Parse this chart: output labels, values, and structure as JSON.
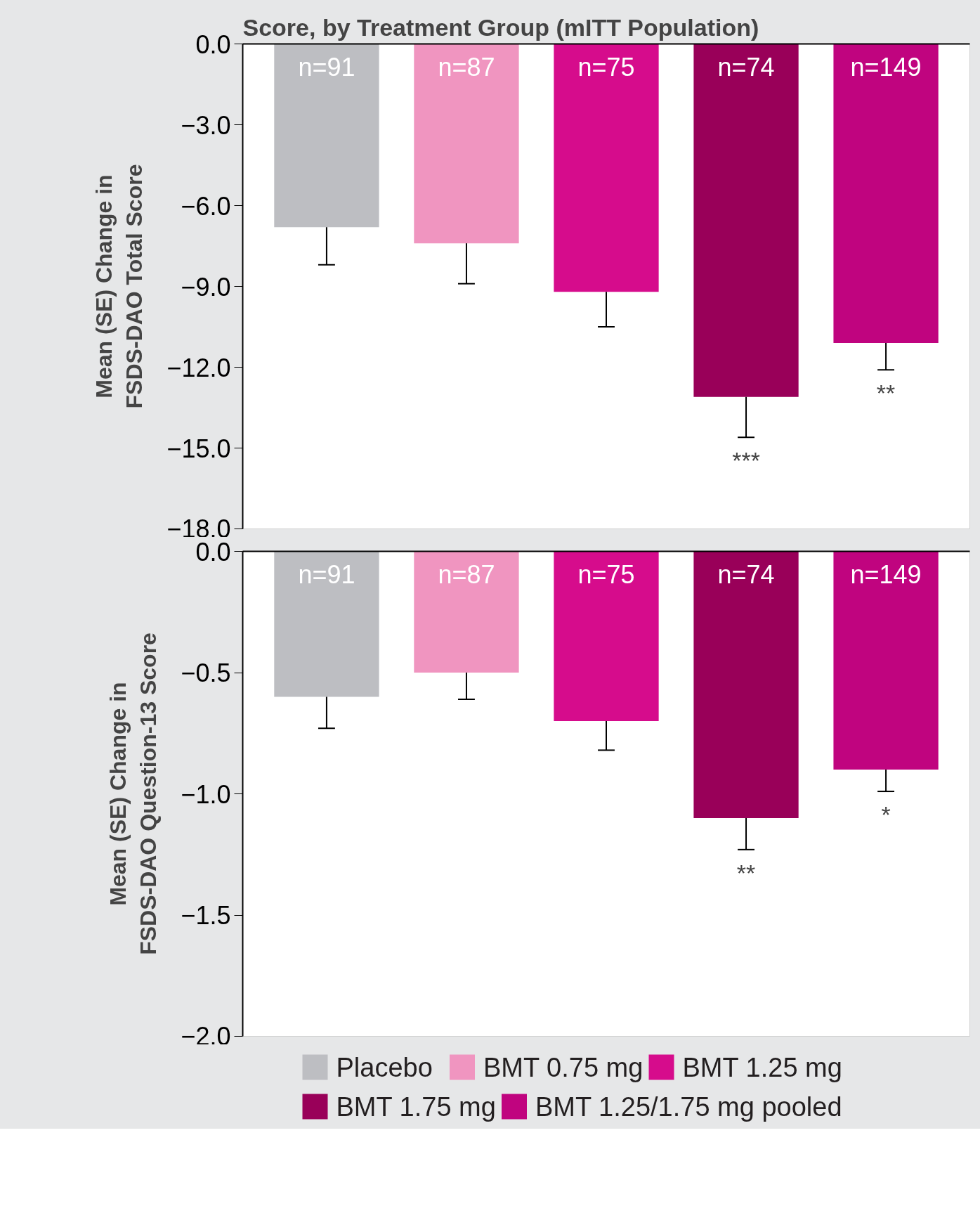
{
  "chart_data": [
    {
      "type": "bar",
      "title": "Score, by Treatment Group (mITT Population)",
      "ylabel": "Mean (SE) Change in\nFSDS-DAO Total Score",
      "categories": [
        null,
        null,
        null,
        null,
        null
      ],
      "stacked": true,
      "series": [
        {
          "color": "#bdbec2",
          "values": [
            -6.8,
            null,
            null,
            null,
            null
          ],
          "errors": [
            [
              -8.2,
              -6.8
            ],
            null,
            null,
            null,
            null
          ]
        },
        {
          "color": "#f095c0",
          "values": [
            null,
            -7.4,
            null,
            null,
            null
          ],
          "errors": [
            null,
            [
              -8.9,
              -7.4
            ],
            null,
            null,
            null
          ]
        },
        {
          "color": "#d60c8c",
          "values": [
            null,
            null,
            -9.2,
            null,
            null
          ],
          "errors": [
            null,
            null,
            [
              -10.5,
              -9.2
            ],
            null,
            null
          ]
        },
        {
          "color": "#990059",
          "values": [
            null,
            null,
            null,
            -13.1,
            null
          ],
          "errors": [
            null,
            null,
            null,
            [
              -14.6,
              -13.1
            ],
            null
          ]
        },
        {
          "color": "#c0047f",
          "values": [
            null,
            null,
            null,
            null,
            -11.1
          ],
          "errors": [
            null,
            null,
            null,
            null,
            [
              -12.1,
              -11.1
            ]
          ]
        }
      ],
      "annotations": [
        "n=91",
        "n=87",
        "n=75",
        "n=74",
        "n=149",
        "***",
        "**"
      ],
      "ylim": [
        -18,
        0
      ],
      "yticks": [
        {
          "value": 0,
          "label": "0.0"
        },
        {
          "value": -3,
          "label": "−3.0"
        },
        {
          "value": -6,
          "label": "−6.0"
        },
        {
          "value": -9,
          "label": "−9.0"
        },
        {
          "value": -12,
          "label": "−12.0"
        },
        {
          "value": -15,
          "label": "−15.0"
        },
        {
          "value": -18,
          "label": "−18.0"
        }
      ],
      "tick_labels": "y",
      "grid": false,
      "legend": false
    },
    {
      "type": "bar",
      "ylabel": "Mean (SE) Change in\nFSDS-DAO Question-13 Score",
      "categories": [
        null,
        null,
        null,
        null,
        null
      ],
      "stacked": true,
      "series": [
        {
          "name": "Placebo",
          "color": "#bdbec2",
          "values": [
            -0.6,
            null,
            null,
            null,
            null
          ],
          "errors": [
            [
              -0.73,
              -0.6
            ],
            null,
            null,
            null,
            null
          ]
        },
        {
          "name": "BMT 0.75 mg",
          "color": "#f095c0",
          "values": [
            null,
            -0.5,
            null,
            null,
            null
          ],
          "errors": [
            null,
            [
              -0.61,
              -0.5
            ],
            null,
            null,
            null
          ]
        },
        {
          "name": "BMT 1.25 mg",
          "color": "#d60c8c",
          "values": [
            null,
            null,
            -0.7,
            null,
            null
          ],
          "errors": [
            null,
            null,
            [
              -0.82,
              -0.7
            ],
            null,
            null
          ]
        },
        {
          "name": "BMT 1.75 mg",
          "color": "#990059",
          "values": [
            null,
            null,
            null,
            -1.1,
            null
          ],
          "errors": [
            null,
            null,
            null,
            [
              -1.23,
              -1.1
            ],
            null
          ]
        },
        {
          "name": "BMT 1.25/1.75 mg pooled",
          "color": "#c0047f",
          "values": [
            null,
            null,
            null,
            null,
            -0.9
          ],
          "errors": [
            null,
            null,
            null,
            null,
            [
              -0.99,
              -0.9
            ]
          ]
        }
      ],
      "annotations": [
        "n=91",
        "n=87",
        "n=75",
        "n=74",
        "n=149",
        "**",
        "*"
      ],
      "ylim": [
        -2,
        0
      ],
      "yticks": [
        {
          "value": 0,
          "label": "0.0"
        },
        {
          "value": -0.5,
          "label": "−0.5"
        },
        {
          "value": -1,
          "label": "−1.0"
        },
        {
          "value": -1.5,
          "label": "−1.5"
        },
        {
          "value": -2,
          "label": "−2.0"
        }
      ],
      "tick_labels": "y",
      "grid": false,
      "legend": "bottom"
    }
  ]
}
